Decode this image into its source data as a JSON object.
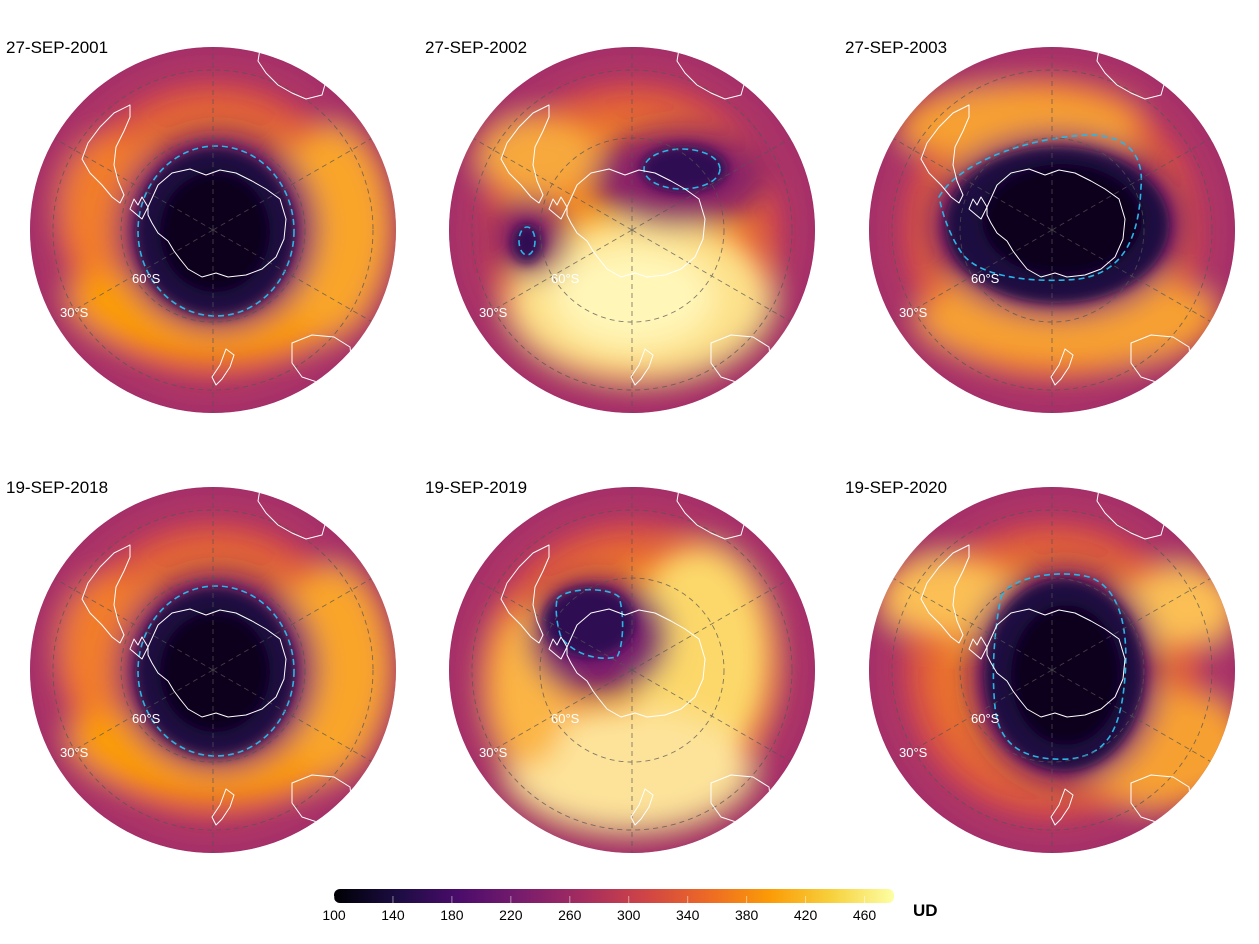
{
  "panels": [
    {
      "date": "27-SEP-2001",
      "lat60": "60°S",
      "lat30": "30°S",
      "hole": "centered"
    },
    {
      "date": "27-SEP-2002",
      "lat60": "60°S",
      "lat30": "30°S",
      "hole": "split"
    },
    {
      "date": "27-SEP-2003",
      "lat60": "60°S",
      "lat30": "30°S",
      "hole": "large"
    },
    {
      "date": "19-SEP-2018",
      "lat60": "60°S",
      "lat30": "30°S",
      "hole": "centered"
    },
    {
      "date": "19-SEP-2019",
      "lat60": "60°S",
      "lat30": "30°S",
      "hole": "small"
    },
    {
      "date": "19-SEP-2020",
      "lat60": "60°S",
      "lat30": "30°S",
      "hole": "large-vertical"
    }
  ],
  "colorbar": {
    "ticks": [
      "100",
      "140",
      "180",
      "220",
      "260",
      "300",
      "340",
      "380",
      "420",
      "460"
    ],
    "unit": "UD",
    "min": 100,
    "max": 480,
    "colormap": "inferno-like",
    "colors": [
      "#000004",
      "#1b0c41",
      "#4a0c6b",
      "#781c6d",
      "#a52c60",
      "#cf4446",
      "#ed6925",
      "#fb9b06",
      "#f7d13d",
      "#fcffa4"
    ]
  },
  "colors": {
    "ozone_hole_contour": "#29b6e6",
    "coastline": "#ffffff",
    "grid": "#555555"
  }
}
